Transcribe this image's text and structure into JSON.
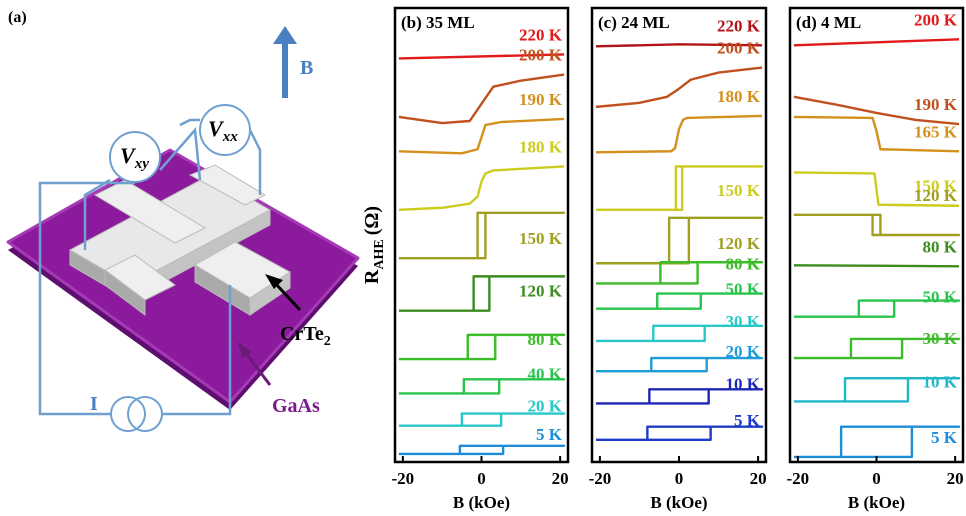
{
  "diagram": {
    "panel_label": "(a)",
    "field": "B",
    "vxy": {
      "main": "V",
      "sub": "xy"
    },
    "vxx": {
      "main": "V",
      "sub": "xx"
    },
    "material": {
      "main": "CrTe",
      "sub": "2"
    },
    "substrate": "GaAs",
    "current": "I"
  },
  "chart_data": [
    {
      "type": "line",
      "title": "(b) 35 ML",
      "ylabel": {
        "main": "R",
        "sub": "AHE",
        "unit": "(Ω)"
      },
      "xlabel": "B (kOe)",
      "xlim": [
        -22,
        22
      ],
      "xticks": [
        -20,
        0,
        20
      ],
      "ylim": [
        0,
        45
      ],
      "series": [
        {
          "name": "220 K",
          "color": "#e31a1c",
          "x": [
            -21,
            21
          ],
          "values": [
            40.0,
            40.4
          ]
        },
        {
          "name": "200 K",
          "color": "#c0501e",
          "x": [
            -21,
            -10,
            -3,
            0,
            3,
            10,
            21
          ],
          "values": [
            34.2,
            33.6,
            33.8,
            35.5,
            37.2,
            37.8,
            38.4
          ]
        },
        {
          "name": "190 K",
          "color": "#d4901e",
          "x": [
            -21,
            -5,
            -1,
            0,
            1,
            5,
            21
          ],
          "values": [
            30.8,
            30.6,
            31.0,
            32.2,
            33.4,
            33.7,
            34.0
          ]
        },
        {
          "name": "180 K",
          "color": "#cccc1e",
          "x": [
            -21,
            -10,
            -3,
            -1,
            0,
            1,
            3,
            21
          ],
          "values": [
            25.0,
            25.2,
            25.6,
            26.3,
            27.8,
            28.6,
            28.9,
            29.3
          ]
        },
        {
          "name": "150 K",
          "color": "#a0a020",
          "x": [
            -21,
            1,
            1,
            21,
            -1,
            -1,
            -21
          ],
          "values": [
            20.2,
            20.2,
            24.7,
            24.7,
            24.7,
            20.2,
            20.2
          ]
        },
        {
          "name": "120 K",
          "color": "#3c8c1e",
          "x": [
            -21,
            2,
            2,
            21,
            -2,
            -2,
            -21
          ],
          "values": [
            15,
            15,
            18.4,
            18.4,
            18.4,
            15,
            15
          ]
        },
        {
          "name": "80 K",
          "color": "#3cbc28",
          "x": [
            -21,
            3.5,
            3.5,
            21,
            -3.5,
            -3.5,
            -21
          ],
          "values": [
            10.2,
            10.2,
            12.6,
            12.6,
            12.6,
            10.2,
            10.2
          ]
        },
        {
          "name": "40 K",
          "color": "#28c44c",
          "x": [
            -21,
            4.5,
            4.5,
            21,
            -4.5,
            -4.5,
            -21
          ],
          "values": [
            6.8,
            6.8,
            8.2,
            8.2,
            8.2,
            6.8,
            6.8
          ]
        },
        {
          "name": "20 K",
          "color": "#28c8c8",
          "x": [
            -21,
            5,
            5,
            21,
            -5,
            -5,
            -21
          ],
          "values": [
            3.6,
            3.6,
            4.8,
            4.8,
            4.8,
            3.6,
            3.6
          ]
        },
        {
          "name": "5 K",
          "color": "#1e8cd8",
          "x": [
            -21,
            5.5,
            5.5,
            21,
            -5.5,
            -5.5,
            -21
          ],
          "values": [
            0.8,
            0.8,
            1.6,
            1.6,
            1.6,
            0.8,
            0.8
          ]
        }
      ]
    },
    {
      "type": "line",
      "title": "(c) 24 ML",
      "xlabel": "B (kOe)",
      "xlim": [
        -22,
        22
      ],
      "xticks": [
        -20,
        0,
        20
      ],
      "ylim": [
        0,
        45
      ],
      "series": [
        {
          "name": "220 K",
          "color": "#b01418",
          "x": [
            -21,
            0,
            21
          ],
          "values": [
            41.2,
            41.4,
            41.3
          ]
        },
        {
          "name": "200 K",
          "color": "#c0501e",
          "x": [
            -21,
            -10,
            -3,
            0,
            3,
            10,
            21
          ],
          "values": [
            35.2,
            35.6,
            36.2,
            37.0,
            37.9,
            38.6,
            39.1
          ]
        },
        {
          "name": "180 K",
          "color": "#d4901e",
          "x": [
            -21,
            -2,
            -1,
            0,
            1,
            2,
            21
          ],
          "values": [
            30.7,
            30.8,
            31.1,
            33.0,
            33.9,
            34.1,
            34.3
          ]
        },
        {
          "name": "150 K",
          "color": "#cccc1e",
          "x": [
            -21,
            0.8,
            0.8,
            21,
            -0.8,
            -0.8,
            -21
          ],
          "values": [
            25,
            25,
            29.3,
            29.3,
            29.3,
            25,
            25
          ]
        },
        {
          "name": "120 K",
          "color": "#a0a020",
          "x": [
            -21,
            2.5,
            2.5,
            21,
            -2.5,
            -2.5,
            -21
          ],
          "values": [
            19.7,
            19.7,
            24.2,
            24.2,
            24.2,
            19.7,
            19.7
          ]
        },
        {
          "name": "80 K",
          "color": "#3cbc28",
          "x": [
            -21,
            4.7,
            4.7,
            21,
            -4.7,
            -4.7,
            -21
          ],
          "values": [
            17.7,
            17.7,
            19.8,
            19.8,
            19.8,
            17.7,
            17.7
          ]
        },
        {
          "name": "50 K",
          "color": "#28c44c",
          "x": [
            -21,
            5.5,
            5.5,
            21,
            -5.5,
            -5.5,
            -21
          ],
          "values": [
            15.2,
            15.2,
            16.7,
            16.7,
            16.7,
            15.2,
            15.2
          ]
        },
        {
          "name": "30 K",
          "color": "#28c8c8",
          "x": [
            -21,
            6.5,
            6.5,
            21,
            -6.5,
            -6.5,
            -21
          ],
          "values": [
            12,
            12,
            13.5,
            13.5,
            13.5,
            12,
            12
          ]
        },
        {
          "name": "20 K",
          "color": "#1e9cd8",
          "x": [
            -21,
            7,
            7,
            21,
            -7,
            -7,
            -21
          ],
          "values": [
            9,
            9,
            10.3,
            10.3,
            10.3,
            9,
            9
          ]
        },
        {
          "name": "10 K",
          "color": "#1e28b4",
          "x": [
            -21,
            7.5,
            7.5,
            21,
            -7.5,
            -7.5,
            -21
          ],
          "values": [
            5.8,
            5.8,
            7.2,
            7.2,
            7.2,
            5.8,
            5.8
          ]
        },
        {
          "name": "5 K",
          "color": "#1e3cc8",
          "x": [
            -21,
            8,
            8,
            21,
            -8,
            -8,
            -21
          ],
          "values": [
            2.2,
            2.2,
            3.5,
            3.5,
            3.5,
            2.2,
            2.2
          ]
        }
      ]
    },
    {
      "type": "line",
      "title": "(d) 4 ML",
      "xlabel": "B (kOe)",
      "xlim": [
        -22,
        22
      ],
      "xticks": [
        -20,
        0,
        20
      ],
      "ylim": [
        0,
        45
      ],
      "series": [
        {
          "name": "200 K",
          "color": "#e31a1c",
          "x": [
            -21,
            21
          ],
          "values": [
            41.3,
            41.9
          ]
        },
        {
          "name": "190 K",
          "color": "#c0501e",
          "x": [
            -21,
            -10,
            0,
            10,
            21
          ],
          "values": [
            36.2,
            35.4,
            34.6,
            33.9,
            33.5
          ]
        },
        {
          "name": "165 K",
          "color": "#d4901e",
          "x": [
            -21,
            -1,
            0,
            1,
            21
          ],
          "values": [
            34.2,
            34.1,
            32.8,
            31.0,
            30.8
          ]
        },
        {
          "name": "150 K",
          "color": "#cccc1e",
          "x": [
            -21,
            -0.5,
            0,
            0.5,
            21
          ],
          "values": [
            28.7,
            28.6,
            27,
            25.5,
            25.4
          ]
        },
        {
          "name": "120 K",
          "color": "#a0a020",
          "x": [
            -21,
            1,
            1,
            21,
            -1,
            -1,
            -21
          ],
          "values": [
            24.5,
            24.5,
            22.5,
            22.5,
            22.5,
            24.5,
            24.5
          ]
        },
        {
          "name": "80 K",
          "color": "#3c8c1e",
          "x": [
            -21,
            21
          ],
          "values": [
            19.5,
            19.4
          ]
        },
        {
          "name": "50 K",
          "color": "#28c44c",
          "x": [
            -21,
            4.5,
            4.5,
            21,
            -4.5,
            -4.5,
            -21
          ],
          "values": [
            14.4,
            14.4,
            16,
            16,
            16,
            14.4,
            14.4
          ]
        },
        {
          "name": "30 K",
          "color": "#3cbc28",
          "x": [
            -21,
            6.5,
            6.5,
            21,
            -6.5,
            -6.5,
            -21
          ],
          "values": [
            10.3,
            10.3,
            12.2,
            12.2,
            12.2,
            10.3,
            10.3
          ]
        },
        {
          "name": "10 K",
          "color": "#20b8c8",
          "x": [
            -21,
            8,
            8,
            21,
            -8,
            -8,
            -21
          ],
          "values": [
            6,
            6,
            8.3,
            8.3,
            8.3,
            6,
            6
          ]
        },
        {
          "name": "5 K",
          "color": "#1e8cd8",
          "x": [
            -21,
            9,
            9,
            21,
            -9,
            -9,
            -21
          ],
          "values": [
            0.5,
            0.5,
            3.5,
            3.5,
            3.5,
            0.5,
            0.5
          ]
        }
      ]
    }
  ]
}
